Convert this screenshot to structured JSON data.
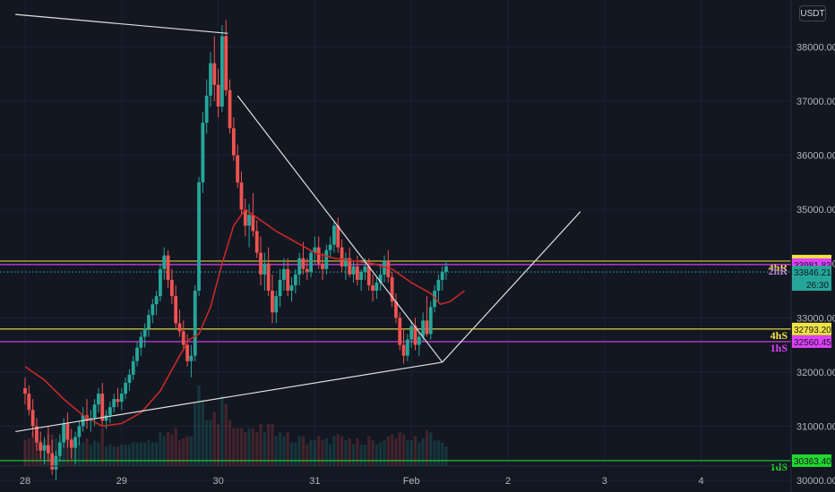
{
  "header": {
    "currency": "USDT"
  },
  "chart_data": {
    "type": "candlestick",
    "x_ticks": [
      "28",
      "29",
      "30",
      "31",
      "Feb",
      "2",
      "3",
      "4"
    ],
    "y_ticks": [
      "30000.00",
      "31000.00",
      "32000.00",
      "33000.00",
      "34000.00",
      "35000.00",
      "36000.00",
      "37000.00",
      "38000.00"
    ],
    "ylim": [
      29950,
      38800
    ],
    "x_days": [
      0,
      7
    ],
    "candles": [
      [
        0.0,
        31700,
        31900,
        31400,
        31600
      ],
      [
        0.04,
        31600,
        31750,
        31200,
        31300
      ],
      [
        0.08,
        31300,
        31500,
        30800,
        31000
      ],
      [
        0.12,
        31000,
        31150,
        30550,
        30700
      ],
      [
        0.16,
        30700,
        30900,
        30400,
        30550
      ],
      [
        0.2,
        30550,
        30800,
        30300,
        30650
      ],
      [
        0.24,
        30650,
        31000,
        30350,
        30500
      ],
      [
        0.28,
        30500,
        30750,
        30100,
        30200
      ],
      [
        0.32,
        30200,
        30550,
        30000,
        30450
      ],
      [
        0.36,
        30450,
        30850,
        30350,
        30700
      ],
      [
        0.4,
        30700,
        31150,
        30600,
        31050
      ],
      [
        0.44,
        31050,
        31250,
        30600,
        30750
      ],
      [
        0.48,
        30750,
        30950,
        30400,
        30600
      ],
      [
        0.52,
        30600,
        30900,
        30300,
        30800
      ],
      [
        0.56,
        30800,
        31100,
        30650,
        31000
      ],
      [
        0.6,
        31000,
        31350,
        30900,
        31200
      ],
      [
        0.64,
        31200,
        31500,
        30950,
        31100
      ],
      [
        0.68,
        31100,
        31300,
        30900,
        31150
      ],
      [
        0.72,
        31150,
        31500,
        31000,
        31400
      ],
      [
        0.76,
        31400,
        31700,
        31250,
        31600
      ],
      [
        0.8,
        31600,
        31800,
        31000,
        31100
      ],
      [
        0.84,
        31100,
        31300,
        30950,
        31200
      ],
      [
        0.88,
        31200,
        31450,
        31050,
        31350
      ],
      [
        0.92,
        31350,
        31600,
        31250,
        31500
      ],
      [
        0.96,
        31500,
        31700,
        31350,
        31450
      ],
      [
        1.0,
        31450,
        31700,
        31300,
        31600
      ],
      [
        1.04,
        31600,
        31900,
        31500,
        31800
      ],
      [
        1.08,
        31800,
        32050,
        31650,
        31950
      ],
      [
        1.12,
        31950,
        32300,
        31850,
        32200
      ],
      [
        1.16,
        32200,
        32550,
        32100,
        32450
      ],
      [
        1.2,
        32450,
        32750,
        32300,
        32650
      ],
      [
        1.24,
        32650,
        32900,
        32450,
        32800
      ],
      [
        1.28,
        32800,
        33150,
        32650,
        33050
      ],
      [
        1.32,
        33050,
        33350,
        32900,
        33250
      ],
      [
        1.36,
        33250,
        33500,
        33050,
        33400
      ],
      [
        1.4,
        33400,
        34000,
        33300,
        33900
      ],
      [
        1.44,
        33900,
        34300,
        33700,
        34150
      ],
      [
        1.48,
        34150,
        34250,
        33550,
        33700
      ],
      [
        1.52,
        33700,
        33900,
        33250,
        33400
      ],
      [
        1.56,
        33400,
        33600,
        32800,
        32900
      ],
      [
        1.6,
        32900,
        33150,
        32650,
        32750
      ],
      [
        1.64,
        32750,
        32950,
        32400,
        32500
      ],
      [
        1.68,
        32500,
        32700,
        32100,
        32200
      ],
      [
        1.72,
        32200,
        32500,
        31900,
        32300
      ],
      [
        1.76,
        32300,
        33600,
        32200,
        33500
      ],
      [
        1.8,
        33500,
        35600,
        33400,
        35500
      ],
      [
        1.84,
        35500,
        36800,
        35300,
        36600
      ],
      [
        1.88,
        36600,
        37400,
        36400,
        37100
      ],
      [
        1.92,
        37100,
        37900,
        36900,
        37700
      ],
      [
        1.96,
        37700,
        38200,
        37000,
        37300
      ],
      [
        2.0,
        37300,
        37600,
        36700,
        36900
      ],
      [
        2.04,
        36900,
        38400,
        36800,
        38200
      ],
      [
        2.08,
        38200,
        38500,
        37100,
        37200
      ],
      [
        2.12,
        37200,
        37400,
        36400,
        36500
      ],
      [
        2.16,
        36500,
        36700,
        35900,
        36000
      ],
      [
        2.2,
        36000,
        36200,
        35400,
        35500
      ],
      [
        2.24,
        35500,
        35700,
        34900,
        35000
      ],
      [
        2.28,
        35000,
        35200,
        34500,
        34700
      ],
      [
        2.32,
        34700,
        35100,
        34300,
        34900
      ],
      [
        2.36,
        34900,
        35300,
        34500,
        34600
      ],
      [
        2.4,
        34600,
        34800,
        34100,
        34200
      ],
      [
        2.44,
        34200,
        34500,
        33600,
        33800
      ],
      [
        2.48,
        33800,
        34200,
        33500,
        34000
      ],
      [
        2.52,
        34000,
        34300,
        33400,
        33500
      ],
      [
        2.56,
        33500,
        33800,
        32900,
        33100
      ],
      [
        2.6,
        33100,
        33500,
        32900,
        33400
      ],
      [
        2.64,
        33400,
        33900,
        33200,
        33700
      ],
      [
        2.68,
        33700,
        34100,
        33500,
        33900
      ],
      [
        2.72,
        33900,
        34100,
        33400,
        33500
      ],
      [
        2.76,
        33500,
        33750,
        33300,
        33600
      ],
      [
        2.8,
        33600,
        33900,
        33450,
        33800
      ],
      [
        2.84,
        33800,
        34200,
        33600,
        34100
      ],
      [
        2.88,
        34100,
        34400,
        33800,
        33900
      ],
      [
        2.92,
        33900,
        34100,
        33700,
        33850
      ],
      [
        2.96,
        33850,
        34250,
        33750,
        34200
      ],
      [
        3.0,
        34200,
        34500,
        34000,
        34300
      ],
      [
        3.04,
        34300,
        34500,
        33900,
        34000
      ],
      [
        3.08,
        34000,
        34200,
        33700,
        33900
      ],
      [
        3.12,
        33900,
        34350,
        33800,
        34250
      ],
      [
        3.16,
        34250,
        34500,
        34100,
        34350
      ],
      [
        3.2,
        34350,
        34800,
        34200,
        34700
      ],
      [
        3.24,
        34700,
        34850,
        34200,
        34300
      ],
      [
        3.28,
        34300,
        34450,
        33850,
        33950
      ],
      [
        3.32,
        33950,
        34200,
        33700,
        34100
      ],
      [
        3.36,
        34100,
        34300,
        33750,
        33800
      ],
      [
        3.4,
        33800,
        34050,
        33650,
        33950
      ],
      [
        3.44,
        33950,
        34150,
        33600,
        33700
      ],
      [
        3.48,
        33700,
        33900,
        33500,
        33850
      ],
      [
        3.52,
        33850,
        34100,
        33700,
        33950
      ],
      [
        3.56,
        33950,
        34100,
        33500,
        33600
      ],
      [
        3.6,
        33600,
        33800,
        33300,
        33500
      ],
      [
        3.64,
        33500,
        33750,
        33350,
        33650
      ],
      [
        3.68,
        33650,
        33950,
        33500,
        33800
      ],
      [
        3.72,
        33800,
        34150,
        33650,
        34050
      ],
      [
        3.76,
        34050,
        34250,
        33650,
        33750
      ],
      [
        3.8,
        33750,
        33850,
        33200,
        33300
      ],
      [
        3.84,
        33300,
        33450,
        32900,
        33000
      ],
      [
        3.88,
        33000,
        33100,
        32400,
        32500
      ],
      [
        3.92,
        32500,
        32800,
        32150,
        32300
      ],
      [
        3.96,
        32300,
        32700,
        32200,
        32600
      ],
      [
        4.0,
        32600,
        32950,
        32450,
        32850
      ],
      [
        4.04,
        32850,
        33000,
        32400,
        32500
      ],
      [
        4.08,
        32500,
        32750,
        32300,
        32650
      ],
      [
        4.12,
        32650,
        33100,
        32550,
        32950
      ],
      [
        4.16,
        32950,
        33400,
        32650,
        32700
      ],
      [
        4.2,
        32700,
        33300,
        32600,
        33200
      ],
      [
        4.24,
        33200,
        33600,
        33100,
        33500
      ],
      [
        4.28,
        33500,
        33800,
        33300,
        33700
      ],
      [
        4.32,
        33700,
        33950,
        33500,
        33850
      ],
      [
        4.36,
        33850,
        34050,
        33700,
        33950
      ]
    ],
    "ma_line": [
      [
        0.0,
        32100
      ],
      [
        0.2,
        31850
      ],
      [
        0.4,
        31500
      ],
      [
        0.6,
        31200
      ],
      [
        0.8,
        31000
      ],
      [
        1.0,
        31050
      ],
      [
        1.2,
        31250
      ],
      [
        1.4,
        31650
      ],
      [
        1.6,
        32300
      ],
      [
        1.7,
        32600
      ],
      [
        1.8,
        32700
      ],
      [
        1.92,
        33200
      ],
      [
        2.04,
        34000
      ],
      [
        2.16,
        34700
      ],
      [
        2.28,
        35000
      ],
      [
        2.4,
        34850
      ],
      [
        2.6,
        34600
      ],
      [
        2.8,
        34400
      ],
      [
        3.0,
        34200
      ],
      [
        3.2,
        34100
      ],
      [
        3.4,
        34050
      ],
      [
        3.6,
        34000
      ],
      [
        3.8,
        33900
      ],
      [
        4.0,
        33650
      ],
      [
        4.2,
        33450
      ],
      [
        4.3,
        33250
      ],
      [
        4.4,
        33300
      ],
      [
        4.55,
        33500
      ]
    ],
    "trendlines": [
      {
        "from": [
          -0.1,
          38600
        ],
        "to": [
          2.1,
          38250
        ]
      },
      {
        "from": [
          2.2,
          37100
        ],
        "to": [
          4.32,
          32180
        ]
      },
      {
        "from": [
          4.32,
          32180
        ],
        "to": [
          5.75,
          34960
        ]
      },
      {
        "from": [
          -0.1,
          30900
        ],
        "to": [
          4.32,
          32180
        ]
      }
    ],
    "levels": [
      {
        "value": 34046.82,
        "label": "34046.82",
        "color": "#f0e442",
        "style": "solid",
        "tag": "4hR",
        "tag_color": "#f0e442",
        "badge_text": "#131722"
      },
      {
        "value": 33981.83,
        "label": "33981.83",
        "color": "#e040fb",
        "style": "solid",
        "tag": "2hR",
        "tag_color": "#c77dd6",
        "badge_text": "#131722"
      },
      {
        "value": 33846.21,
        "label": "33846.21",
        "color": "#26a69a",
        "style": "dotted",
        "tag": "",
        "tag_color": "",
        "badge_text": "#131722"
      },
      {
        "value": 32793.2,
        "label": "32793.20",
        "color": "#f0e442",
        "style": "solid",
        "tag": "4hS",
        "tag_color": "#f0e442",
        "badge_text": "#131722"
      },
      {
        "value": 32560.45,
        "label": "32560.45",
        "color": "#e040fb",
        "style": "solid",
        "tag": "1hS",
        "tag_color": "#e040fb",
        "badge_text": "#131722"
      },
      {
        "value": 30363.4,
        "label": "30363.40",
        "color": "#22d630",
        "style": "solid",
        "tag": "1dS",
        "tag_color": "#22d630",
        "badge_text": "#131722"
      }
    ],
    "countdown": "26:30",
    "colors": {
      "up": "#26a69a",
      "down": "#ef5350",
      "ma": "#c62828",
      "trend": "#e0e0e0",
      "grid": "#1e2230",
      "bg": "#131722"
    }
  }
}
